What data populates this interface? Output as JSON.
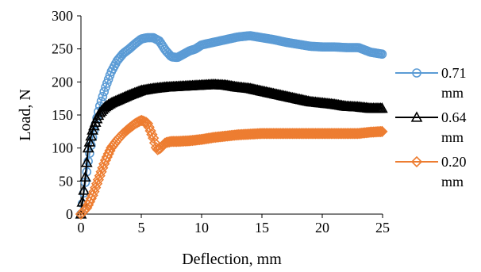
{
  "chart_data": {
    "type": "line",
    "title": "",
    "xlabel": "Deflection, mm",
    "ylabel": "Load, N",
    "xlim": [
      0,
      25
    ],
    "ylim": [
      0,
      300
    ],
    "xticks": [
      "0",
      "5",
      "10",
      "15",
      "20",
      "25"
    ],
    "yticks": [
      "0",
      "50",
      "100",
      "150",
      "200",
      "250",
      "300"
    ],
    "grid": false,
    "legend_position": "right",
    "series": [
      {
        "name": "0.71 mm",
        "color": "#5B9BD5",
        "marker": "circle",
        "x": [
          0,
          0.3,
          0.6,
          1.0,
          1.5,
          2.0,
          2.5,
          3.0,
          3.5,
          4.0,
          4.5,
          5.0,
          5.5,
          6.0,
          6.5,
          7.0,
          7.5,
          8.0,
          8.5,
          9.0,
          9.5,
          10.0,
          11.0,
          12.0,
          13.0,
          14.0,
          15.0,
          16.0,
          17.0,
          18.0,
          19.0,
          20.0,
          21.0,
          22.0,
          23.0,
          24.0,
          25.0
        ],
        "y": [
          0,
          40,
          80,
          120,
          160,
          190,
          215,
          232,
          243,
          250,
          258,
          265,
          267,
          267,
          262,
          248,
          238,
          237,
          242,
          247,
          250,
          256,
          260,
          264,
          268,
          270,
          267,
          264,
          260,
          257,
          254,
          253,
          253,
          252,
          252,
          245,
          242
        ]
      },
      {
        "name": "0.64 mm",
        "color": "#000000",
        "marker": "triangle",
        "x": [
          0,
          0.3,
          0.6,
          1.0,
          1.5,
          2.0,
          2.5,
          3.0,
          4.0,
          5.0,
          6.0,
          7.0,
          8.0,
          9.0,
          10.0,
          11.0,
          12.0,
          13.0,
          14.0,
          15.0,
          16.0,
          17.0,
          18.0,
          19.0,
          20.0,
          21.0,
          22.0,
          23.0,
          24.0,
          25.0
        ],
        "y": [
          0,
          45,
          100,
          130,
          152,
          162,
          168,
          172,
          180,
          187,
          190,
          192,
          193,
          194,
          195,
          196,
          195,
          192,
          190,
          186,
          182,
          178,
          174,
          170,
          168,
          166,
          163,
          162,
          160,
          160
        ]
      },
      {
        "name": "0.20 mm",
        "color": "#ED7D31",
        "marker": "diamond",
        "x": [
          0,
          0.5,
          1.0,
          1.5,
          2.0,
          2.5,
          3.0,
          3.5,
          4.0,
          4.5,
          5.0,
          5.5,
          6.0,
          6.3,
          6.6,
          7.0,
          7.5,
          8.0,
          9.0,
          10.0,
          11.0,
          12.0,
          13.0,
          14.0,
          15.0,
          16.0,
          17.0,
          18.0,
          19.0,
          20.0,
          21.0,
          22.0,
          23.0,
          24.0,
          25.0
        ],
        "y": [
          0,
          10,
          30,
          55,
          80,
          100,
          112,
          122,
          130,
          137,
          142,
          138,
          115,
          97,
          100,
          108,
          110,
          110,
          111,
          113,
          116,
          118,
          120,
          121,
          122,
          122,
          122,
          122,
          122,
          122,
          122,
          122,
          122,
          124,
          125
        ]
      }
    ]
  }
}
